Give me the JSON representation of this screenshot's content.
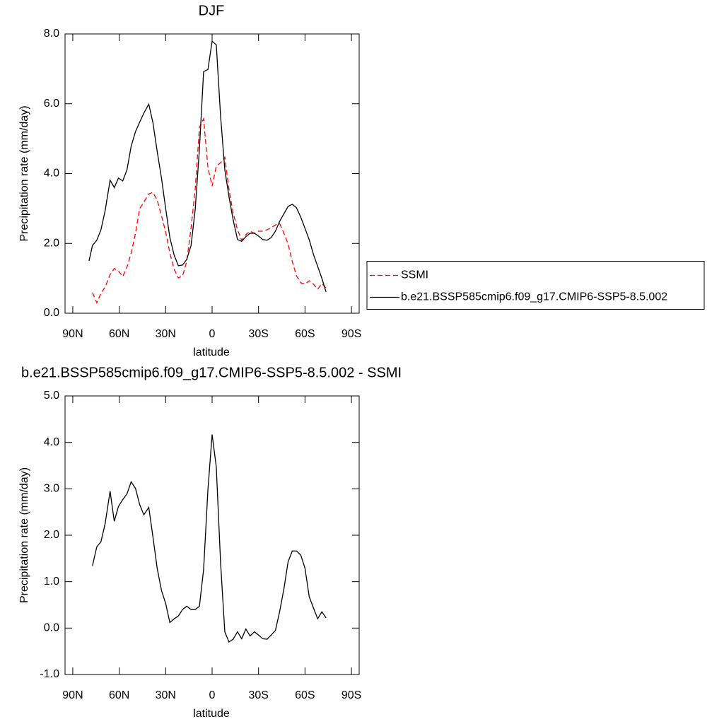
{
  "chart_data": [
    {
      "type": "line",
      "title": "DJF",
      "xlabel": "latitude",
      "ylabel": "Precipitation rate (mm/day)",
      "x": [
        79.5,
        77.3,
        74.5,
        71.8,
        69.1,
        65.9,
        63.2,
        60.5,
        57.7,
        55,
        52.3,
        49.5,
        46.8,
        44.1,
        40.9,
        38.2,
        35.5,
        32.7,
        30,
        27.3,
        24.5,
        21.8,
        19.1,
        16.4,
        13.6,
        10.9,
        8.2,
        5.5,
        2.7,
        0,
        -2.7,
        -5.5,
        -8.2,
        -10.9,
        -13.6,
        -16.4,
        -19.1,
        -21.8,
        -24.5,
        -27.3,
        -30,
        -32.7,
        -35.5,
        -38.2,
        -40.9,
        -43.6,
        -46.4,
        -49.1,
        -51.8,
        -54.5,
        -57.3,
        -60,
        -62.7,
        -65.5,
        -68.2,
        -70.9,
        -73.6
      ],
      "series": [
        {
          "name": "SSMI",
          "color": "#ff0000",
          "dash": true,
          "values": [
            null,
            0.59,
            0.3,
            0.57,
            0.75,
            1.11,
            1.28,
            1.21,
            1.05,
            1.32,
            1.72,
            2.29,
            3.0,
            3.18,
            3.42,
            3.46,
            3.24,
            2.79,
            2.33,
            1.72,
            1.26,
            1.01,
            1.07,
            1.48,
            2.45,
            3.56,
            5.32,
            5.57,
            4.17,
            3.64,
            4.21,
            4.31,
            4.47,
            3.54,
            2.87,
            2.39,
            2.09,
            2.25,
            2.35,
            2.29,
            2.35,
            2.35,
            2.39,
            2.45,
            2.53,
            2.57,
            2.29,
            1.98,
            1.48,
            1.07,
            0.87,
            0.83,
            0.93,
            0.83,
            0.69,
            0.85,
            0.72
          ]
        },
        {
          "name": "b.e21.BSSP585cmip6.f09_g17.CMIP6-SSP5-8.5.002",
          "color": "#000000",
          "dash": false,
          "values": [
            1.5,
            1.94,
            2.09,
            2.39,
            2.94,
            3.81,
            3.6,
            3.87,
            3.79,
            4.11,
            4.78,
            5.2,
            5.47,
            5.73,
            5.99,
            5.45,
            4.64,
            3.87,
            3.0,
            2.17,
            1.66,
            1.36,
            1.38,
            1.54,
            1.94,
            2.98,
            4.7,
            6.92,
            6.98,
            7.79,
            7.69,
            5.63,
            4.11,
            3.34,
            2.67,
            2.11,
            2.06,
            2.19,
            2.29,
            2.29,
            2.21,
            2.11,
            2.09,
            2.17,
            2.35,
            2.63,
            2.85,
            3.06,
            3.12,
            3.02,
            2.75,
            2.43,
            2.11,
            1.68,
            1.34,
            1.0,
            0.61
          ]
        }
      ],
      "legend": "right",
      "xlim": [
        95,
        -95
      ],
      "xticks": [
        {
          "value": 90,
          "label": "90N"
        },
        {
          "value": 60,
          "label": "60N"
        },
        {
          "value": 30,
          "label": "30N"
        },
        0,
        {
          "value": -30,
          "label": "30S"
        },
        {
          "value": -60,
          "label": "60S"
        },
        {
          "value": -90,
          "label": "90S"
        }
      ],
      "ylim": [
        0,
        8
      ],
      "yticks": [
        {
          "value": 0,
          "label": "0.0"
        },
        {
          "value": 2,
          "label": "2.0"
        },
        {
          "value": 4,
          "label": "4.0"
        },
        {
          "value": 6,
          "label": "6.0"
        },
        {
          "value": 8,
          "label": "8.0"
        }
      ]
    },
    {
      "type": "line",
      "title": "b.e21.BSSP585cmip6.f09_g17.CMIP6-SSP5-8.5.002 - SSMI",
      "xlabel": "latitude",
      "ylabel": "Precipitation rate (mm/day)",
      "x": [
        77.3,
        74.5,
        71.8,
        69.1,
        65.9,
        63.2,
        60.5,
        57.7,
        55,
        52.3,
        49.5,
        46.8,
        44.1,
        40.9,
        38.2,
        35.5,
        32.7,
        30,
        27.3,
        24.5,
        21.8,
        19.1,
        16.4,
        13.6,
        10.9,
        8.2,
        5.5,
        2.7,
        0,
        -2.7,
        -5.5,
        -8.2,
        -10.9,
        -13.6,
        -16.4,
        -19.1,
        -21.8,
        -24.5,
        -27.3,
        -30,
        -32.7,
        -35.5,
        -38.2,
        -40.9,
        -43.6,
        -46.4,
        -49.1,
        -51.8,
        -54.5,
        -57.3,
        -60,
        -62.7,
        -65.5,
        -68.2,
        -70.9,
        -73.6
      ],
      "series": [
        {
          "color": "#000000",
          "dash": false,
          "values": [
            1.34,
            1.75,
            1.86,
            2.25,
            2.95,
            2.3,
            2.62,
            2.77,
            2.89,
            3.15,
            3.01,
            2.66,
            2.44,
            2.6,
            1.96,
            1.29,
            0.81,
            0.53,
            0.12,
            0.2,
            0.26,
            0.4,
            0.47,
            0.4,
            0.4,
            0.47,
            1.26,
            2.98,
            4.17,
            3.47,
            1.39,
            -0.08,
            -0.3,
            -0.24,
            -0.08,
            -0.23,
            -0.02,
            -0.17,
            -0.08,
            -0.15,
            -0.23,
            -0.24,
            -0.15,
            -0.05,
            0.35,
            0.85,
            1.43,
            1.66,
            1.66,
            1.57,
            1.29,
            0.68,
            0.43,
            0.2,
            0.35,
            0.22
          ]
        }
      ],
      "xlim": [
        95,
        -95
      ],
      "xticks": [
        {
          "value": 90,
          "label": "90N"
        },
        {
          "value": 60,
          "label": "60N"
        },
        {
          "value": 30,
          "label": "30N"
        },
        0,
        {
          "value": -30,
          "label": "30S"
        },
        {
          "value": -60,
          "label": "60S"
        },
        {
          "value": -90,
          "label": "90S"
        }
      ],
      "ylim": [
        -1,
        5
      ],
      "yticks": [
        {
          "value": -1,
          "label": "-1.0"
        },
        {
          "value": 0,
          "label": "0.0"
        },
        {
          "value": 1,
          "label": "1.0"
        },
        {
          "value": 2,
          "label": "2.0"
        },
        {
          "value": 3,
          "label": "3.0"
        },
        {
          "value": 4,
          "label": "4.0"
        },
        {
          "value": 5,
          "label": "5.0"
        }
      ]
    }
  ]
}
